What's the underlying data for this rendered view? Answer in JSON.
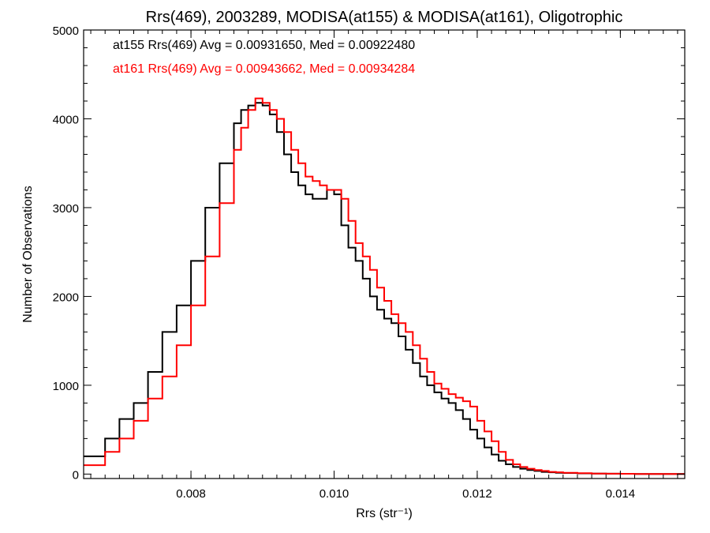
{
  "chart_data": {
    "type": "line",
    "title": "Rrs(469), 2003289, MODISA(at155) & MODISA(at161), Oligotrophic",
    "xlabel": "Rrs (str⁻¹)",
    "ylabel": "Number of Observations",
    "xlim": [
      0.0065,
      0.0149
    ],
    "ylim": [
      -50,
      5000
    ],
    "x_ticks": [
      0.008,
      0.01,
      0.012,
      0.014
    ],
    "x_tick_labels": [
      "0.008",
      "0.010",
      "0.012",
      "0.014"
    ],
    "y_ticks": [
      0,
      1000,
      2000,
      3000,
      4000,
      5000
    ],
    "y_tick_labels": [
      "0",
      "1000",
      "2000",
      "3000",
      "4000",
      "5000"
    ],
    "grid": false,
    "annotations": [
      {
        "text": "at155 Rrs(469) Avg = 0.00931650, Med = 0.00922480",
        "color": "#000000"
      },
      {
        "text": "at161 Rrs(469) Avg = 0.00943662, Med = 0.00934284",
        "color": "#ff0000"
      }
    ],
    "series": [
      {
        "color": "#000000",
        "x": [
          0.0065,
          0.0068,
          0.007,
          0.0072,
          0.0074,
          0.0076,
          0.0078,
          0.008,
          0.0082,
          0.0084,
          0.0086,
          0.0087,
          0.0088,
          0.0089,
          0.009,
          0.0091,
          0.0092,
          0.0093,
          0.0094,
          0.0095,
          0.0096,
          0.0097,
          0.0098,
          0.0099,
          0.01,
          0.0101,
          0.0102,
          0.0103,
          0.0104,
          0.0105,
          0.0106,
          0.0107,
          0.0108,
          0.0109,
          0.011,
          0.0111,
          0.0112,
          0.0113,
          0.0114,
          0.0115,
          0.0116,
          0.0117,
          0.0118,
          0.0119,
          0.012,
          0.0121,
          0.0122,
          0.0123,
          0.0124,
          0.0125,
          0.0126,
          0.0127,
          0.0128,
          0.0129,
          0.013,
          0.0131,
          0.0132,
          0.0134,
          0.0136,
          0.0138,
          0.014,
          0.0142,
          0.0144,
          0.0146,
          0.0149
        ],
        "y": [
          200,
          400,
          620,
          800,
          1150,
          1600,
          1900,
          2400,
          3000,
          3500,
          3950,
          4100,
          4150,
          4180,
          4150,
          4050,
          3850,
          3600,
          3400,
          3250,
          3150,
          3100,
          3100,
          3200,
          3150,
          2800,
          2550,
          2400,
          2200,
          2000,
          1850,
          1750,
          1700,
          1550,
          1400,
          1250,
          1100,
          1000,
          920,
          850,
          800,
          720,
          620,
          500,
          400,
          300,
          220,
          150,
          110,
          80,
          60,
          45,
          35,
          25,
          20,
          15,
          12,
          8,
          5,
          4,
          3,
          2,
          2,
          1,
          1
        ]
      },
      {
        "color": "#ff0000",
        "x": [
          0.0065,
          0.0068,
          0.007,
          0.0072,
          0.0074,
          0.0076,
          0.0078,
          0.008,
          0.0082,
          0.0084,
          0.0086,
          0.0087,
          0.0088,
          0.0089,
          0.009,
          0.0091,
          0.0092,
          0.0093,
          0.0094,
          0.0095,
          0.0096,
          0.0097,
          0.0098,
          0.0099,
          0.01,
          0.0101,
          0.0102,
          0.0103,
          0.0104,
          0.0105,
          0.0106,
          0.0107,
          0.0108,
          0.0109,
          0.011,
          0.0111,
          0.0112,
          0.0113,
          0.0114,
          0.0115,
          0.0116,
          0.0117,
          0.0118,
          0.0119,
          0.012,
          0.0121,
          0.0122,
          0.0123,
          0.0124,
          0.0125,
          0.0126,
          0.0127,
          0.0128,
          0.0129,
          0.013,
          0.0131,
          0.0132,
          0.0134,
          0.0136,
          0.0138,
          0.014,
          0.0142,
          0.0144,
          0.0146,
          0.0149
        ],
        "y": [
          100,
          250,
          400,
          600,
          850,
          1100,
          1450,
          1900,
          2450,
          3050,
          3650,
          3900,
          4100,
          4230,
          4180,
          4100,
          4000,
          3850,
          3650,
          3500,
          3350,
          3300,
          3250,
          3200,
          3200,
          3100,
          2850,
          2600,
          2450,
          2300,
          2100,
          1950,
          1800,
          1700,
          1600,
          1450,
          1300,
          1150,
          1020,
          960,
          900,
          860,
          820,
          760,
          600,
          480,
          370,
          250,
          160,
          110,
          80,
          60,
          45,
          35,
          25,
          20,
          15,
          10,
          6,
          4,
          3,
          2,
          2,
          1,
          1
        ]
      }
    ]
  }
}
